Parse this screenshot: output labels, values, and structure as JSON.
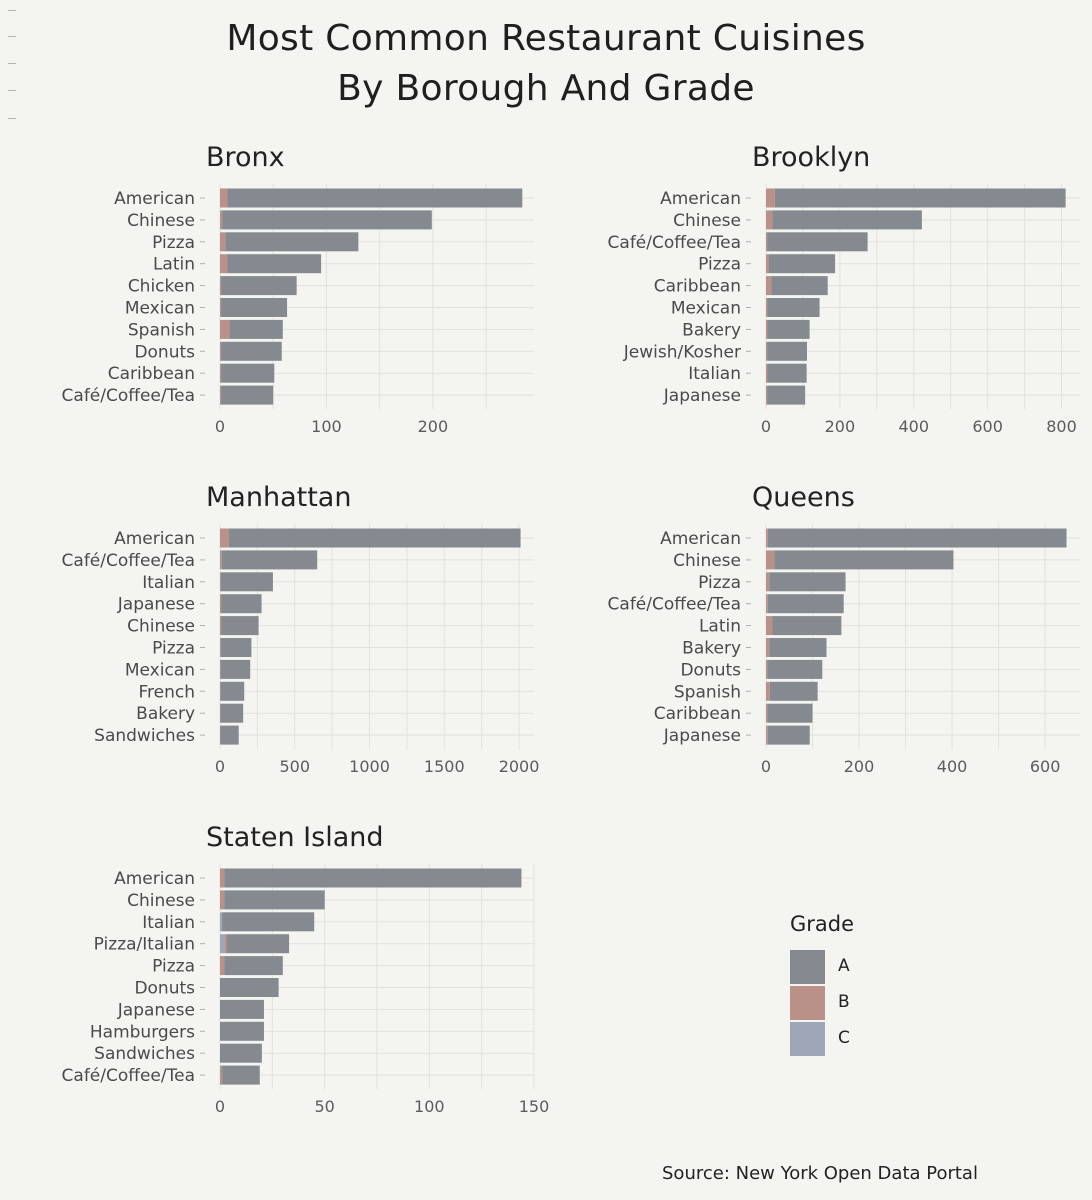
{
  "title_line1": "Most Common Restaurant Cuisines",
  "title_line2": "By Borough And Grade",
  "source": "Source: New York Open Data Portal",
  "colors": {
    "A": "#848a90",
    "B": "#b99189",
    "C": "#9ea6b8",
    "grid": "#e2e2dd",
    "background": "#f4f4f0"
  },
  "legend": {
    "title": "Grade",
    "items": [
      "A",
      "B",
      "C"
    ]
  },
  "chart_data": [
    {
      "type": "bar",
      "orientation": "horizontal",
      "stacked": true,
      "title": "Bronx",
      "categories": [
        "American",
        "Chinese",
        "Pizza",
        "Latin",
        "Chicken",
        "Mexican",
        "Spanish",
        "Donuts",
        "Caribbean",
        "Café/Coffee/Tea"
      ],
      "series": [
        {
          "name": "A",
          "values": [
            277,
            197,
            125,
            88,
            71,
            62,
            50,
            57,
            50,
            49
          ]
        },
        {
          "name": "B",
          "values": [
            7,
            2,
            5,
            7,
            1,
            1,
            9,
            1,
            1,
            1
          ]
        },
        {
          "name": "C",
          "values": [
            0,
            0,
            0,
            0,
            0,
            0,
            0,
            0,
            0,
            0
          ]
        }
      ],
      "xlim": [
        0,
        295
      ],
      "xticks": [
        0,
        100,
        200
      ]
    },
    {
      "type": "bar",
      "orientation": "horizontal",
      "stacked": true,
      "title": "Brooklyn",
      "categories": [
        "American",
        "Chinese",
        "Café/Coffee/Tea",
        "Pizza",
        "Caribbean",
        "Mexican",
        "Bakery",
        "Jewish/Kosher",
        "Italian",
        "Japanese"
      ],
      "series": [
        {
          "name": "A",
          "values": [
            787,
            405,
            272,
            180,
            153,
            141,
            114,
            108,
            106,
            103
          ]
        },
        {
          "name": "B",
          "values": [
            24,
            17,
            3,
            7,
            14,
            4,
            4,
            3,
            4,
            3
          ]
        },
        {
          "name": "C",
          "values": [
            0,
            0,
            0,
            0,
            0,
            0,
            0,
            0,
            0,
            0
          ]
        }
      ],
      "xlim": [
        0,
        850
      ],
      "xticks": [
        0,
        200,
        400,
        600,
        800
      ]
    },
    {
      "type": "bar",
      "orientation": "horizontal",
      "stacked": true,
      "title": "Manhattan",
      "categories": [
        "American",
        "Café/Coffee/Tea",
        "Italian",
        "Japanese",
        "Chinese",
        "Pizza",
        "Mexican",
        "French",
        "Bakery",
        "Sandwiches"
      ],
      "series": [
        {
          "name": "A",
          "values": [
            1950,
            638,
            348,
            268,
            248,
            205,
            198,
            158,
            153,
            122
          ]
        },
        {
          "name": "B",
          "values": [
            60,
            12,
            6,
            10,
            10,
            5,
            4,
            4,
            2,
            3
          ]
        },
        {
          "name": "C",
          "values": [
            0,
            0,
            0,
            0,
            0,
            0,
            0,
            0,
            0,
            0
          ]
        }
      ],
      "xlim": [
        0,
        2100
      ],
      "xticks": [
        0,
        500,
        1000,
        1500,
        2000
      ]
    },
    {
      "type": "bar",
      "orientation": "horizontal",
      "stacked": true,
      "title": "Queens",
      "categories": [
        "American",
        "Chinese",
        "Pizza",
        "Café/Coffee/Tea",
        "Latin",
        "Bakery",
        "Donuts",
        "Spanish",
        "Caribbean",
        "Japanese"
      ],
      "series": [
        {
          "name": "A",
          "values": [
            642,
            385,
            164,
            163,
            148,
            123,
            118,
            103,
            97,
            90
          ]
        },
        {
          "name": "B",
          "values": [
            4,
            18,
            7,
            4,
            14,
            7,
            3,
            8,
            3,
            4
          ]
        },
        {
          "name": "C",
          "values": [
            0,
            0,
            0,
            0,
            0,
            0,
            0,
            0,
            0,
            0
          ]
        }
      ],
      "xlim": [
        0,
        675
      ],
      "xticks": [
        0,
        200,
        400,
        600
      ]
    },
    {
      "type": "bar",
      "orientation": "horizontal",
      "stacked": true,
      "title": "Staten Island",
      "categories": [
        "American",
        "Chinese",
        "Italian",
        "Pizza/Italian",
        "Pizza",
        "Donuts",
        "Japanese",
        "Hamburgers",
        "Sandwiches",
        "Café/Coffee/Tea"
      ],
      "series": [
        {
          "name": "A",
          "values": [
            142,
            48,
            44,
            30,
            28,
            28,
            21,
            21,
            20,
            18
          ]
        },
        {
          "name": "B",
          "values": [
            2,
            2,
            0,
            1,
            2,
            0,
            0,
            0,
            0,
            1
          ]
        },
        {
          "name": "C",
          "values": [
            0,
            0,
            1,
            2,
            0,
            0,
            0,
            0,
            0,
            0
          ]
        }
      ],
      "xlim": [
        0,
        150
      ],
      "xticks": [
        0,
        50,
        100,
        150
      ]
    }
  ]
}
